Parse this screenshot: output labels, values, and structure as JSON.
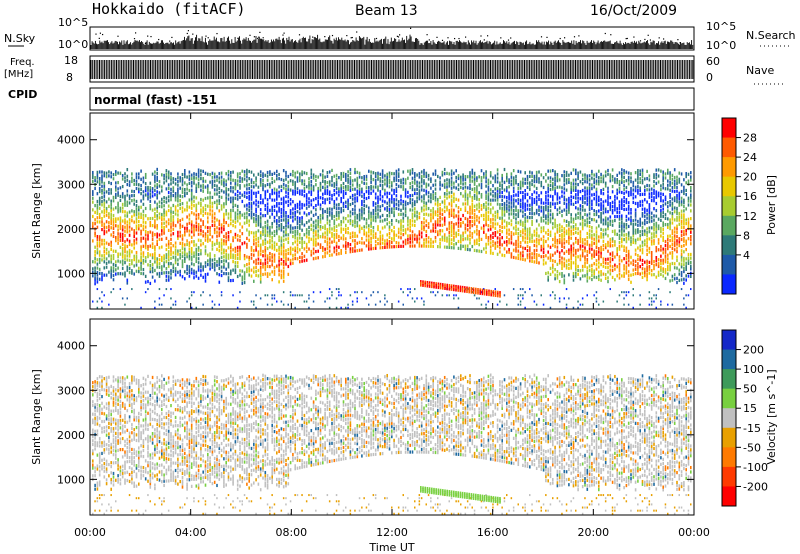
{
  "header": {
    "title": "Hokkaido (fitACF)",
    "beam": "Beam 13",
    "date": "16/Oct/2009"
  },
  "chart_data": {
    "type": "scatter",
    "sky_panel": {
      "left_label": "N.Sky",
      "right_label": "N.Search",
      "left_ticks": [
        "10^5",
        "10^0"
      ],
      "right_ticks": [
        "10^5",
        "10^0"
      ]
    },
    "freq_panel": {
      "left_label_1": "Freq.",
      "left_label_2": "[MHz]",
      "right_label": "Nave",
      "left_ticks": [
        "18",
        "8"
      ],
      "right_ticks": [
        "60",
        "0"
      ]
    },
    "cpid": {
      "label": "CPID",
      "value": "normal (fast) -151"
    },
    "x_axis": {
      "label": "Time UT",
      "ticks": [
        "00:00",
        "04:00",
        "08:00",
        "12:00",
        "16:00",
        "20:00",
        "00:00"
      ],
      "range_hours": [
        0,
        24
      ]
    },
    "power_panel": {
      "ylabel": "Slant Range [km]",
      "yticks": [
        1000,
        2000,
        3000,
        4000
      ],
      "ylim": [
        200,
        4600
      ],
      "colorbar_label": "Power [dB]",
      "colorbar_ticks": [
        "28",
        "24",
        "20",
        "16",
        "12",
        "8",
        "4"
      ],
      "colors": [
        "#ff0000",
        "#ff5a00",
        "#ff9a00",
        "#e8c800",
        "#a8cc30",
        "#5aa860",
        "#2e7a78",
        "#1e5aa8",
        "#0a28ff"
      ]
    },
    "velocity_panel": {
      "ylabel": "Slant Range [km]",
      "yticks": [
        1000,
        2000,
        3000,
        4000
      ],
      "ylim": [
        200,
        4600
      ],
      "colorbar_label": "Velocity [m s^-1]",
      "colorbar_ticks": [
        "200",
        "100",
        "50",
        "15",
        "-15",
        "-50",
        "-100",
        "-200"
      ],
      "colors": [
        "#1428c8",
        "#1e6aa0",
        "#3e9a5a",
        "#78d040",
        "#c0c0c0",
        "#e8a000",
        "#ff7a00",
        "#ff3a00",
        "#ff0000"
      ]
    }
  }
}
